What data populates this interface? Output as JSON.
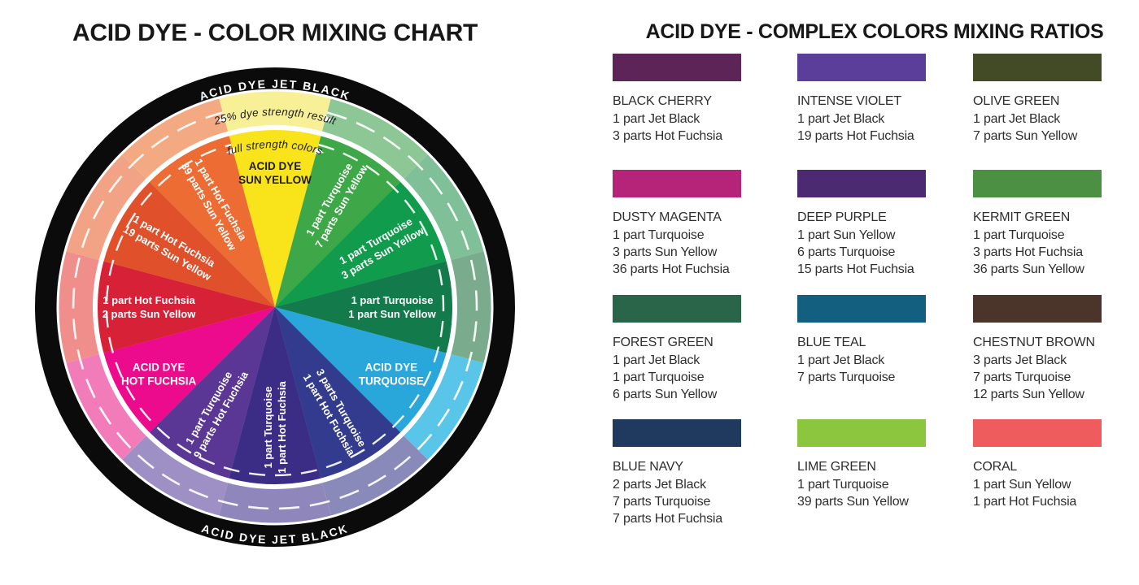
{
  "left_chart": {
    "title": "ACID DYE - COLOR MIXING CHART",
    "ring_label_top": "ACID DYE JET BLACK",
    "ring_label_bottom": "ACID DYE JET BLACK",
    "ring_color": "#0b0b0b",
    "legend_outer_label": "25% dye strength result",
    "legend_inner_label": "full strength colors",
    "legend_text_color": "#1d1d1d",
    "segments": [
      {
        "angle": 0,
        "lines": [
          "ACID DYE",
          "SUN YELLOW"
        ],
        "color": "#f9e41c",
        "tint": "#f8f096",
        "text_color": "#201d0e",
        "rot": 0,
        "label_r": 165
      },
      {
        "angle": 30,
        "lines": [
          "1 part Turquoise",
          "7 parts Sun Yellow"
        ],
        "color": "#3ea848",
        "tint": "#8cc795",
        "text_color": "#ffffff",
        "rot": -60,
        "label_r": 148
      },
      {
        "angle": 60,
        "lines": [
          "1 part Turquoise",
          "3 parts Sun Yellow"
        ],
        "color": "#109c4c",
        "tint": "#7fc098",
        "text_color": "#ffffff",
        "rot": -30,
        "label_r": 148
      },
      {
        "angle": 90,
        "lines": [
          "1 part Turquoise",
          "1 part Sun Yellow"
        ],
        "color": "#127a4b",
        "tint": "#7aab8c",
        "text_color": "#ffffff",
        "rot": 0,
        "label_r": 144
      },
      {
        "angle": 120,
        "lines": [
          "ACID DYE",
          "TURQUOISE"
        ],
        "color": "#29a7db",
        "tint": "#58c5e9",
        "text_color": "#ffffff",
        "rot": 0,
        "label_r": 165
      },
      {
        "angle": 150,
        "lines": [
          "3 parts Turquoise",
          "1 part Hot Fuchsia"
        ],
        "color": "#323b8e",
        "tint": "#8a8aba",
        "text_color": "#ffffff",
        "rot": 60,
        "label_r": 148
      },
      {
        "angle": 180,
        "lines": [
          "1 part Turquoise",
          "1 part Hot Fuchsia"
        ],
        "color": "#3b2d86",
        "tint": "#8f86bb",
        "text_color": "#ffffff",
        "rot": -90,
        "label_r": 148
      },
      {
        "angle": 210,
        "lines": [
          "1 part Turquoise",
          "9 parts Hot Fuchsia"
        ],
        "color": "#5a3795",
        "tint": "#9e90c4",
        "text_color": "#ffffff",
        "rot": -60,
        "label_r": 148
      },
      {
        "angle": 240,
        "lines": [
          "ACID DYE",
          "HOT FUCHSIA"
        ],
        "color": "#ec0b8c",
        "tint": "#f27cba",
        "text_color": "#ffffff",
        "rot": 0,
        "label_r": 165
      },
      {
        "angle": 270,
        "lines": [
          "1 part Hot Fuchsia",
          "2 parts Sun Yellow"
        ],
        "color": "#d62137",
        "tint": "#ef8e8a",
        "text_color": "#ffffff",
        "rot": 0,
        "label_r": 155
      },
      {
        "angle": 300,
        "lines": [
          "1 part Hot Fuchsia",
          "19 parts Sun Yellow"
        ],
        "color": "#e0512b",
        "tint": "#f2a285",
        "text_color": "#ffffff",
        "rot": 30,
        "label_r": 148
      },
      {
        "angle": 330,
        "lines": [
          "1 part Hot Fuchsia",
          "39 parts Sun Yellow"
        ],
        "color": "#ec6c33",
        "tint": "#f3aa83",
        "text_color": "#ffffff",
        "rot": 60,
        "label_r": 148
      }
    ]
  },
  "right_panel": {
    "title": "ACID DYE - COMPLEX COLORS MIXING RATIOS",
    "cards": [
      {
        "name": "BLACK CHERRY",
        "color": "#5d2457",
        "recipe": [
          "1 part Jet Black",
          "3 parts Hot Fuchsia"
        ]
      },
      {
        "name": "INTENSE VIOLET",
        "color": "#5b3d9a",
        "recipe": [
          "1 part Jet Black",
          "19 parts Hot Fuchsia"
        ]
      },
      {
        "name": "OLIVE GREEN",
        "color": "#434a26",
        "recipe": [
          "1 part Jet Black",
          "7 parts Sun Yellow"
        ]
      },
      {
        "name": "DUSTY MAGENTA",
        "color": "#b52478",
        "recipe": [
          "1 part Turquoise",
          "3 parts Sun Yellow",
          "36 parts Hot Fuchsia"
        ]
      },
      {
        "name": "DEEP PURPLE",
        "color": "#4c2a71",
        "recipe": [
          "1 part Sun Yellow",
          "6 parts Turquoise",
          "15 parts Hot Fuchsia"
        ]
      },
      {
        "name": "KERMIT GREEN",
        "color": "#4c9143",
        "recipe": [
          "1 part Turquoise",
          "3 parts Hot Fuchsia",
          "36 parts Sun Yellow"
        ]
      },
      {
        "name": "FOREST GREEN",
        "color": "#2a6449",
        "recipe": [
          "1 part Jet Black",
          "1 part Turquoise",
          "6 parts Sun Yellow"
        ]
      },
      {
        "name": "BLUE TEAL",
        "color": "#135f80",
        "recipe": [
          "1 part Jet Black",
          "7 parts Turquoise"
        ]
      },
      {
        "name": "CHESTNUT BROWN",
        "color": "#4b3429",
        "recipe": [
          "3 parts Jet Black",
          "7 parts Turquoise",
          "12 parts Sun Yellow"
        ]
      },
      {
        "name": "BLUE NAVY",
        "color": "#20395f",
        "recipe": [
          "2 parts Jet Black",
          "7 parts Turquoise",
          "7 parts Hot Fuchsia"
        ]
      },
      {
        "name": "LIME GREEN",
        "color": "#8cc63e",
        "recipe": [
          "1 part Turquoise",
          "39 parts Sun Yellow"
        ]
      },
      {
        "name": "CORAL",
        "color": "#ef5c5e",
        "recipe": [
          "1 part Sun Yellow",
          "1 part Hot Fuchsia"
        ]
      }
    ]
  }
}
